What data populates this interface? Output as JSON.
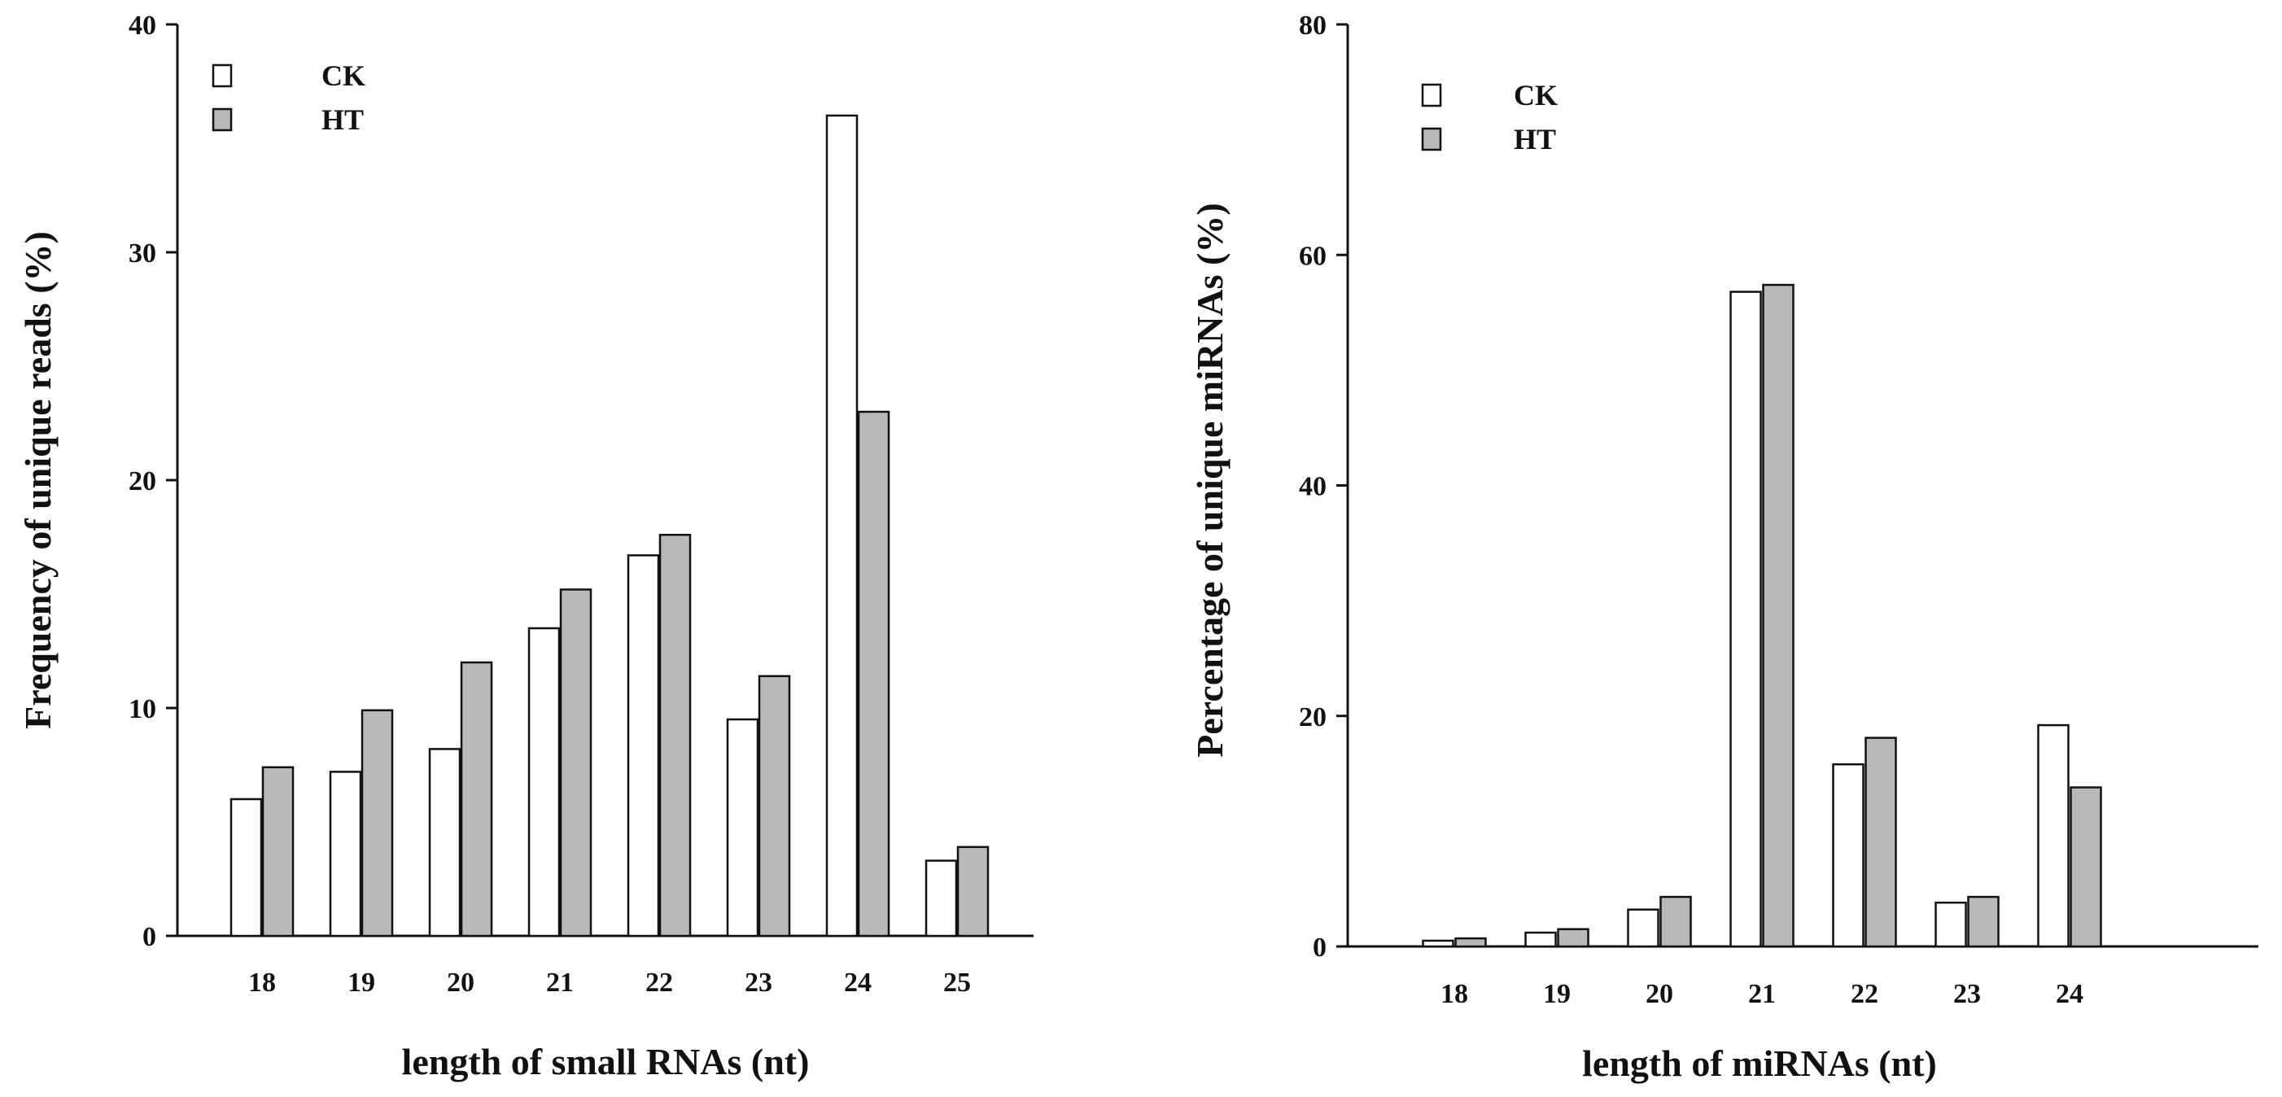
{
  "colors": {
    "CK": "#ffffff",
    "HT": "#b9b9b9",
    "stroke": "#111111"
  },
  "chart_data": [
    {
      "type": "bar",
      "categories": [
        "18",
        "19",
        "20",
        "21",
        "22",
        "23",
        "24",
        "25"
      ],
      "series": [
        {
          "name": "CK",
          "values": [
            6.0,
            7.2,
            8.2,
            13.5,
            16.7,
            9.5,
            36.0,
            3.3
          ]
        },
        {
          "name": "HT",
          "values": [
            7.4,
            9.9,
            12.0,
            15.2,
            17.6,
            11.4,
            23.0,
            3.9
          ]
        }
      ],
      "xlabel": "length of small RNAs (nt)",
      "ylabel": "Frequency of unique reads (%)",
      "ylim": [
        0,
        40
      ],
      "yticks": [
        "0",
        "10",
        "20",
        "30",
        "40"
      ],
      "legend": "top-left",
      "grid": false
    },
    {
      "type": "bar",
      "categories": [
        "18",
        "19",
        "20",
        "21",
        "22",
        "23",
        "24"
      ],
      "series": [
        {
          "name": "CK",
          "values": [
            0.5,
            1.2,
            3.2,
            56.8,
            15.8,
            3.8,
            19.2
          ]
        },
        {
          "name": "HT",
          "values": [
            0.7,
            1.5,
            4.3,
            57.4,
            18.1,
            4.3,
            13.8
          ]
        }
      ],
      "xlabel": "length of miRNAs (nt)",
      "ylabel": "Percentage of unique miRNAs (%)",
      "ylim": [
        0,
        80
      ],
      "yticks": [
        "0",
        "20",
        "40",
        "60",
        "80"
      ],
      "legend": "top-left",
      "grid": false
    }
  ]
}
